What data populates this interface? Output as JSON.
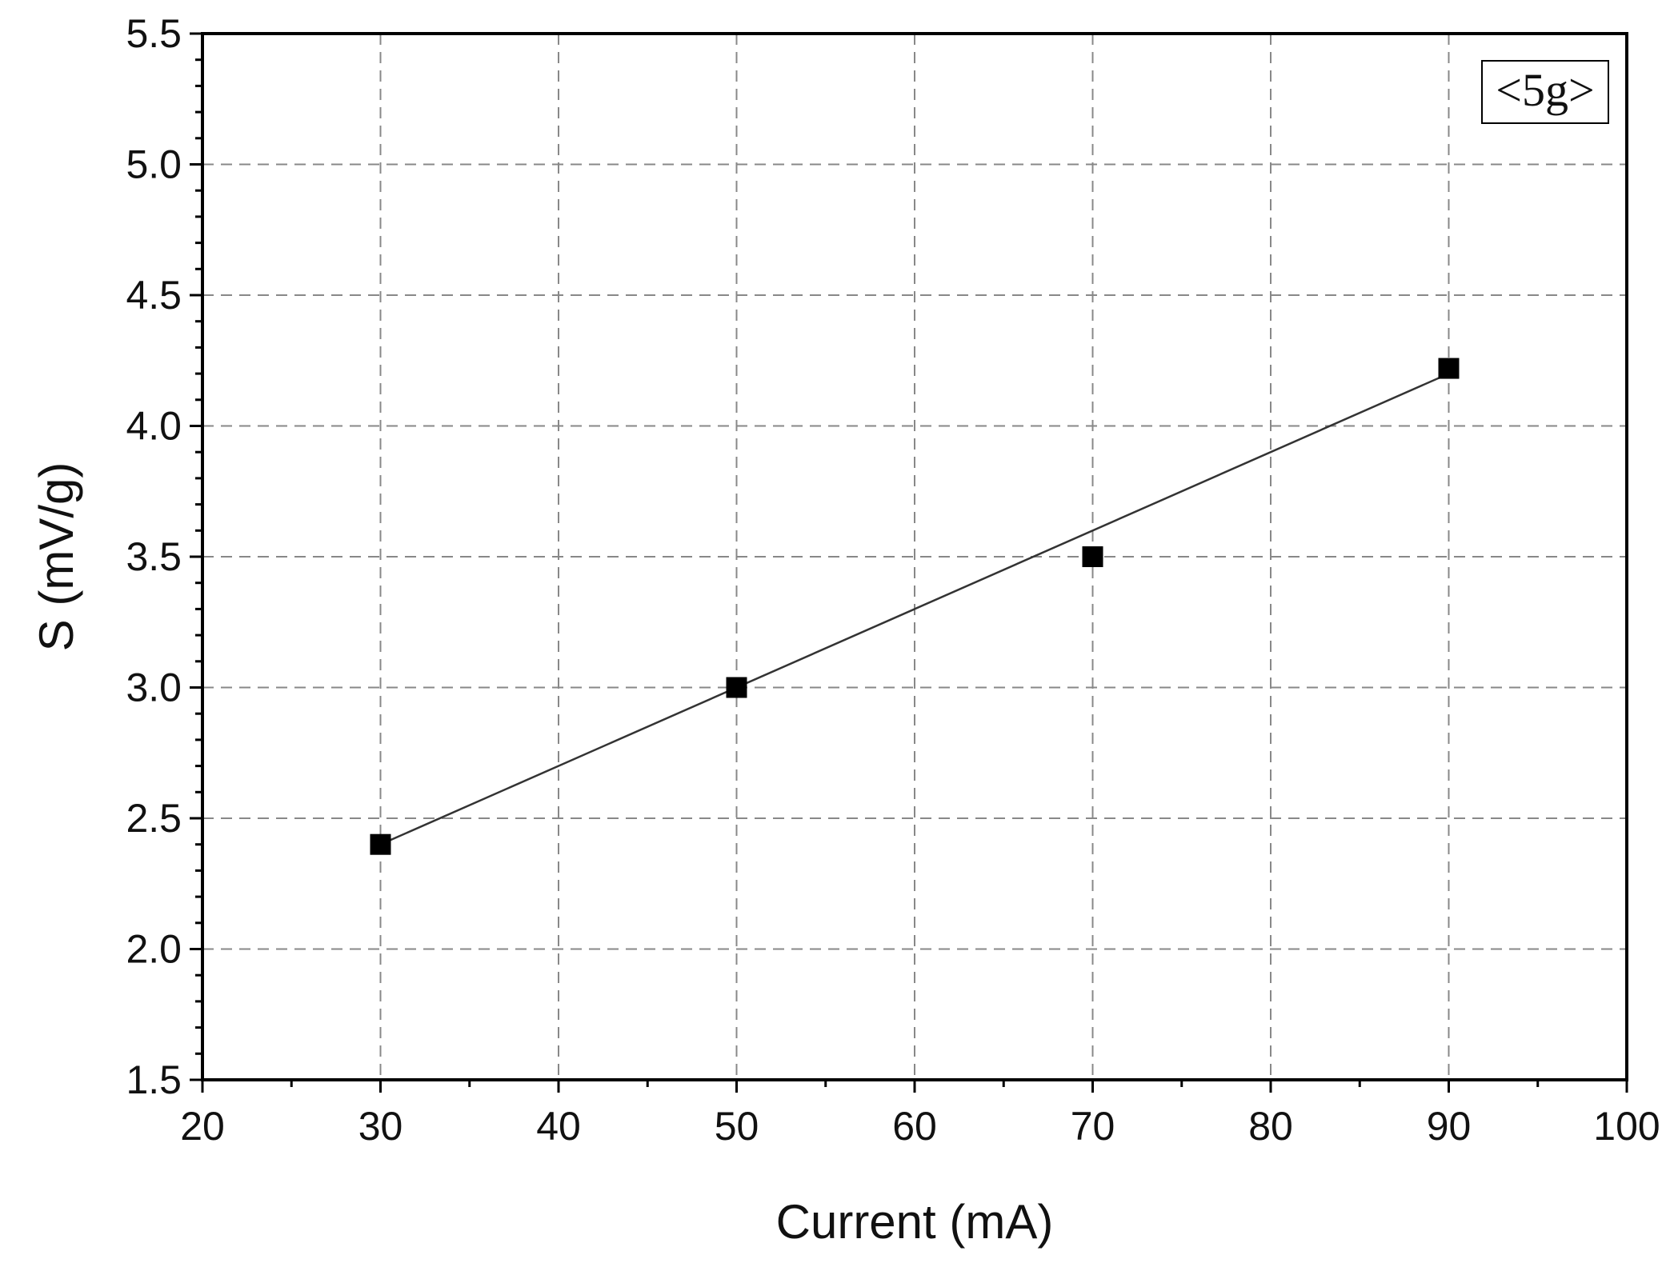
{
  "chart_data": {
    "type": "scatter",
    "xlabel": "Current (mA)",
    "ylabel": "S (mV/g)",
    "xlim": [
      20,
      100
    ],
    "ylim": [
      1.5,
      5.5
    ],
    "x_ticks": [
      20,
      30,
      40,
      50,
      60,
      70,
      80,
      90,
      100
    ],
    "y_ticks": [
      "1.5",
      "2.0",
      "2.5",
      "3.0",
      "3.5",
      "4.0",
      "4.5",
      "5.0",
      "5.5"
    ],
    "grid": true,
    "legend_position": "top-right",
    "legend_label": "<5g>",
    "series": [
      {
        "name": "<5g>",
        "marker": "square",
        "color": "#000000",
        "x": [
          30,
          50,
          70,
          90
        ],
        "y": [
          2.4,
          3.0,
          3.5,
          4.22
        ]
      }
    ],
    "fit_line": {
      "type": "linear",
      "x": [
        30,
        90
      ],
      "y": [
        2.4,
        4.2
      ],
      "color": "#333333"
    }
  }
}
